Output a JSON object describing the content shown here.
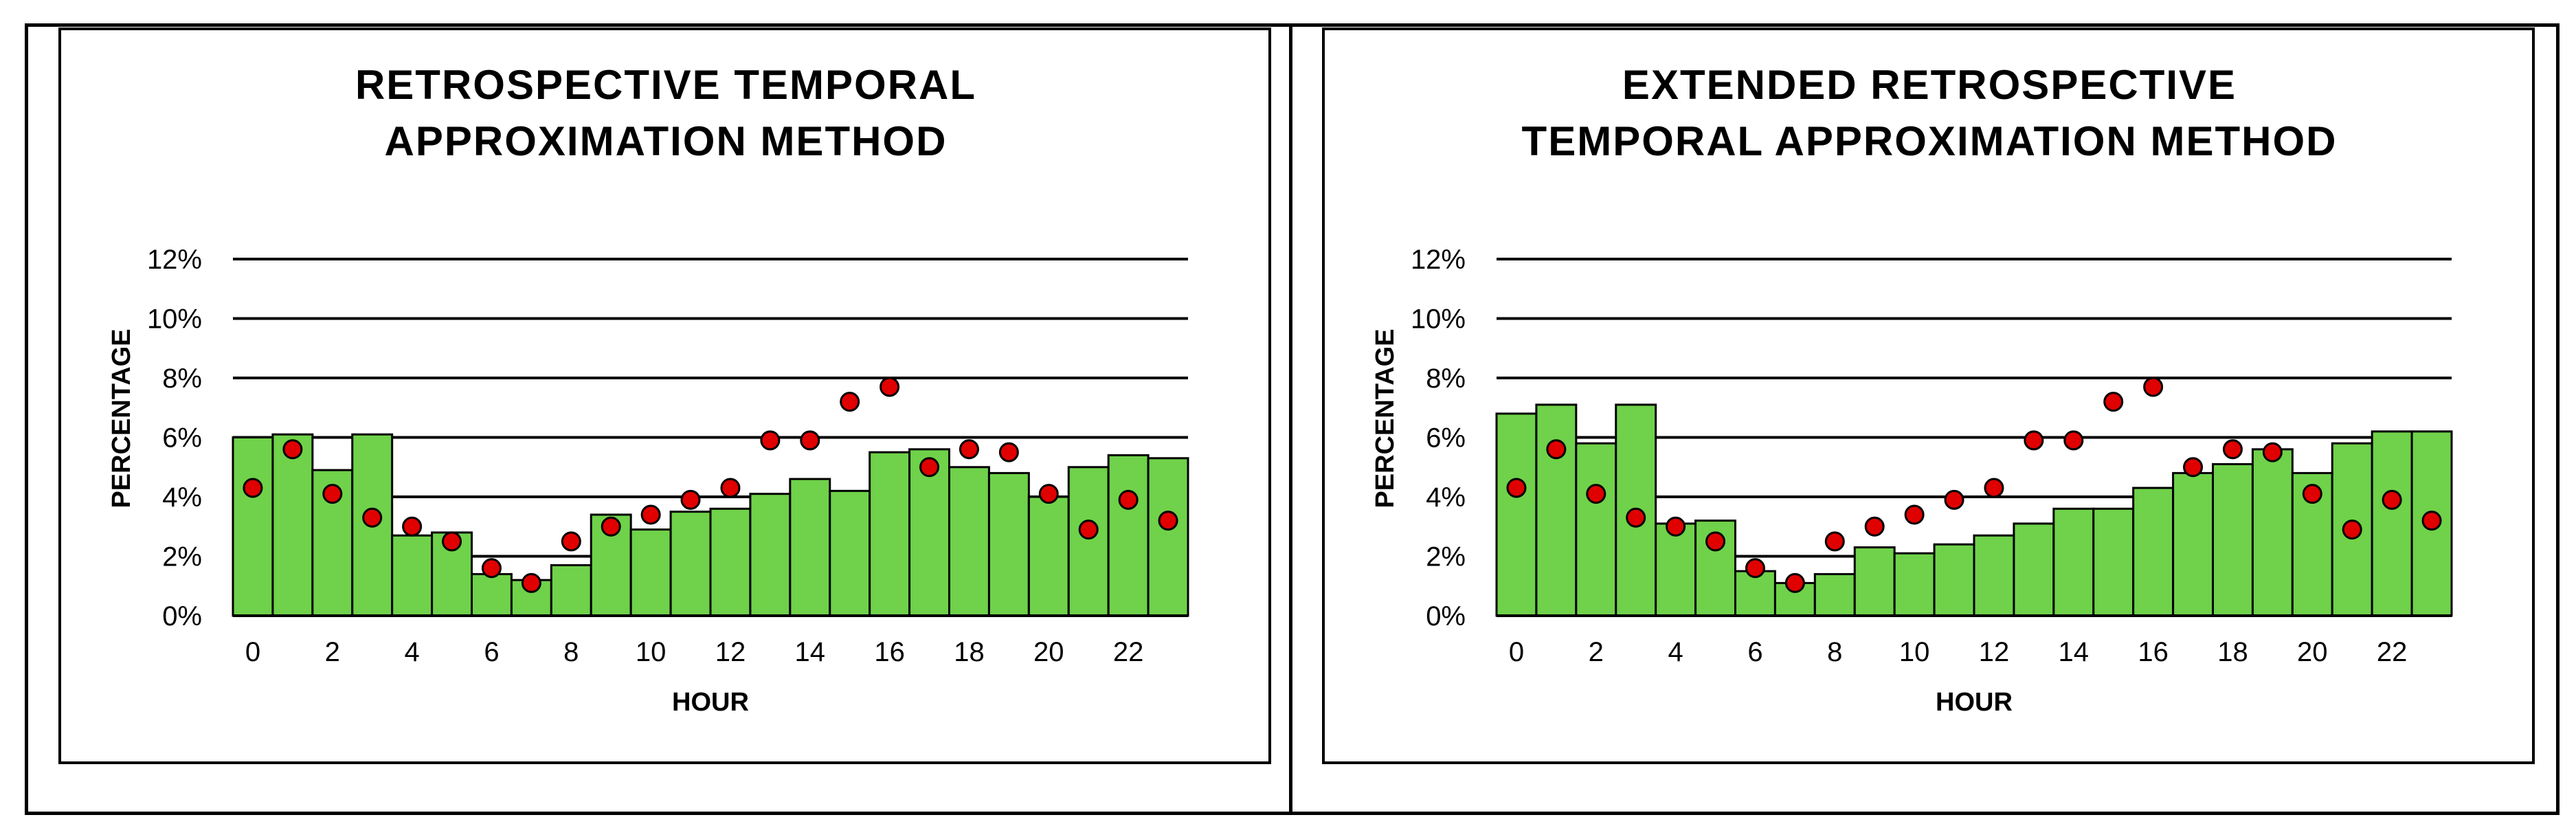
{
  "colors": {
    "bar": "#6fd24a",
    "point": "#e00000",
    "grid": "#000000",
    "background": "#ffffff"
  },
  "chart_data": [
    {
      "type": "bar",
      "title_lines": [
        "RETROSPECTIVE  TEMPORAL",
        "APPROXIMATION  METHOD"
      ],
      "xlabel": "HOUR",
      "ylabel": "PERCENTAGE",
      "ylim": [
        0,
        12
      ],
      "yticks": [
        "0%",
        "2%",
        "4%",
        "6%",
        "8%",
        "10%",
        "12%"
      ],
      "xticks": [
        "0",
        "2",
        "4",
        "6",
        "8",
        "10",
        "12",
        "14",
        "16",
        "18",
        "20",
        "22"
      ],
      "categories": [
        0,
        1,
        2,
        3,
        4,
        5,
        6,
        7,
        8,
        9,
        10,
        11,
        12,
        13,
        14,
        15,
        16,
        17,
        18,
        19,
        20,
        21,
        22,
        23
      ],
      "series": [
        {
          "name": "bars",
          "style": "bar",
          "values": [
            6.0,
            6.1,
            4.9,
            6.1,
            2.7,
            2.8,
            1.4,
            1.2,
            1.7,
            3.4,
            2.9,
            3.5,
            3.6,
            4.1,
            4.6,
            4.2,
            5.5,
            5.6,
            5.0,
            4.8,
            4.0,
            5.0,
            5.4,
            5.3
          ]
        },
        {
          "name": "points",
          "style": "scatter",
          "values": [
            4.3,
            5.6,
            4.1,
            3.3,
            3.0,
            2.5,
            1.6,
            1.1,
            2.5,
            3.0,
            3.4,
            3.9,
            4.3,
            5.9,
            5.9,
            7.2,
            7.7,
            5.0,
            5.6,
            5.5,
            4.1,
            2.9,
            3.9,
            3.2
          ]
        }
      ],
      "grid": true
    },
    {
      "type": "bar",
      "title_lines": [
        "EXTENDED  RETROSPECTIVE",
        "TEMPORAL  APPROXIMATION  METHOD"
      ],
      "xlabel": "HOUR",
      "ylabel": "PERCENTAGE",
      "ylim": [
        0,
        12
      ],
      "yticks": [
        "0%",
        "2%",
        "4%",
        "6%",
        "8%",
        "10%",
        "12%"
      ],
      "xticks": [
        "0",
        "2",
        "4",
        "6",
        "8",
        "10",
        "12",
        "14",
        "16",
        "18",
        "20",
        "22"
      ],
      "categories": [
        0,
        1,
        2,
        3,
        4,
        5,
        6,
        7,
        8,
        9,
        10,
        11,
        12,
        13,
        14,
        15,
        16,
        17,
        18,
        19,
        20,
        21,
        22,
        23
      ],
      "series": [
        {
          "name": "bars",
          "style": "bar",
          "values": [
            6.8,
            7.1,
            5.8,
            7.1,
            3.1,
            3.2,
            1.5,
            1.1,
            1.4,
            2.3,
            2.1,
            2.4,
            2.7,
            3.1,
            3.6,
            3.6,
            4.3,
            4.8,
            5.1,
            5.6,
            4.8,
            5.8,
            6.2,
            6.2
          ]
        },
        {
          "name": "points",
          "style": "scatter",
          "values": [
            4.3,
            5.6,
            4.1,
            3.3,
            3.0,
            2.5,
            1.6,
            1.1,
            2.5,
            3.0,
            3.4,
            3.9,
            4.3,
            5.9,
            5.9,
            7.2,
            7.7,
            5.0,
            5.6,
            5.5,
            4.1,
            2.9,
            3.9,
            3.2
          ]
        }
      ],
      "grid": true
    }
  ]
}
